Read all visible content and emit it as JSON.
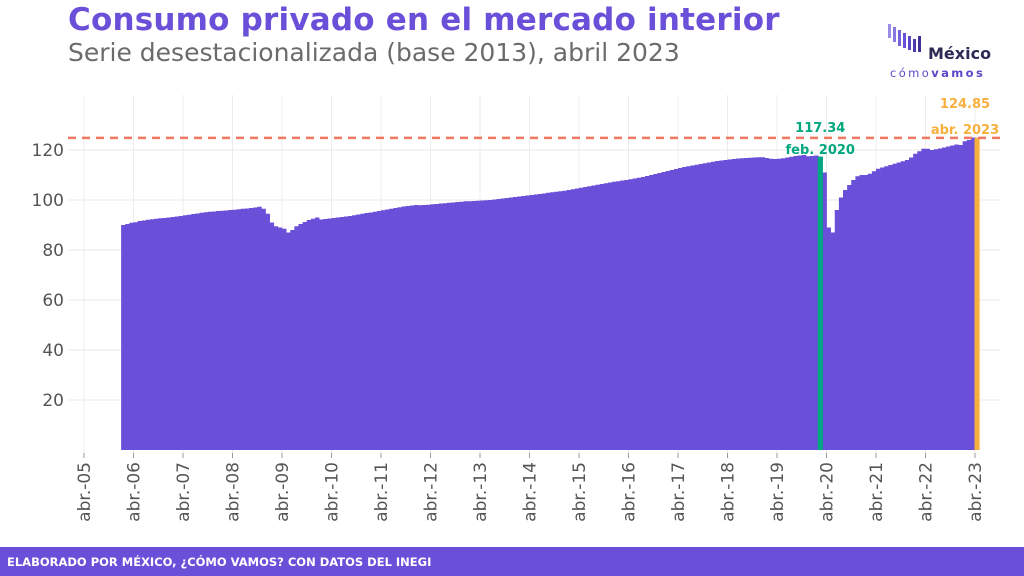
{
  "header": {
    "title": "Consumo privado en el mercado interior",
    "subtitle": "Serie desestacionalizada (base 2013), abril 2023"
  },
  "logo": {
    "word": "México",
    "sub_light": "cómo",
    "sub_bold": "vamos"
  },
  "footer": {
    "text": "ELABORADO POR MÉXICO, ¿CÓMO VAMOS? CON DATOS DEL INEGI"
  },
  "colors": {
    "bars": "#6a4fd9",
    "highlight_feb2020": "#00a77f",
    "highlight_abr2023": "#f7b03d",
    "max_line": "#f07862",
    "title": "#6a4fd9",
    "footer_bg": "#6a4fd9"
  },
  "chart_data": {
    "type": "bar",
    "title": "Consumo privado en el mercado interior",
    "subtitle": "Serie desestacionalizada (base 2013), abril 2023",
    "xlabel": "",
    "ylabel": "",
    "ylim": [
      0,
      130
    ],
    "yticks": [
      20,
      40,
      60,
      80,
      100,
      120
    ],
    "x_start": "2006-01",
    "x_end": "2023-04",
    "frequency": "monthly",
    "grid": true,
    "xtick_labels": [
      "abr.-05",
      "abr.-06",
      "abr.-07",
      "abr.-08",
      "abr.-09",
      "abr.-10",
      "abr.-11",
      "abr.-12",
      "abr.-13",
      "abr.-14",
      "abr.-15",
      "abr.-16",
      "abr.-17",
      "abr.-18",
      "abr.-19",
      "abr.-20",
      "abr.-21",
      "abr.-22",
      "abr.-23"
    ],
    "xtick_dates": [
      "2005-04",
      "2006-04",
      "2007-04",
      "2008-04",
      "2009-04",
      "2010-04",
      "2011-04",
      "2012-04",
      "2013-04",
      "2014-04",
      "2015-04",
      "2016-04",
      "2017-04",
      "2018-04",
      "2019-04",
      "2020-04",
      "2021-04",
      "2022-04",
      "2023-04"
    ],
    "values": [
      90.0,
      90.4,
      90.9,
      91.1,
      91.6,
      91.8,
      92.1,
      92.3,
      92.5,
      92.7,
      92.8,
      93.0,
      93.2,
      93.4,
      93.6,
      93.9,
      94.1,
      94.4,
      94.6,
      94.9,
      95.1,
      95.3,
      95.4,
      95.6,
      95.7,
      95.8,
      96.0,
      96.1,
      96.3,
      96.5,
      96.6,
      96.8,
      97.0,
      97.3,
      96.5,
      94.5,
      91.0,
      89.5,
      89.0,
      88.5,
      87.0,
      88.0,
      89.5,
      90.4,
      91.2,
      92.0,
      92.5,
      93.0,
      92.2,
      92.4,
      92.6,
      92.8,
      93.0,
      93.2,
      93.4,
      93.6,
      93.9,
      94.2,
      94.5,
      94.8,
      95.0,
      95.3,
      95.6,
      95.9,
      96.2,
      96.5,
      96.8,
      97.1,
      97.4,
      97.6,
      97.8,
      98.0,
      97.9,
      98.0,
      98.1,
      98.3,
      98.4,
      98.6,
      98.7,
      98.9,
      99.0,
      99.2,
      99.3,
      99.5,
      99.5,
      99.6,
      99.7,
      99.8,
      99.9,
      100.0,
      100.2,
      100.4,
      100.6,
      100.8,
      101.0,
      101.2,
      101.4,
      101.6,
      101.8,
      102.0,
      102.2,
      102.4,
      102.6,
      102.9,
      103.1,
      103.3,
      103.5,
      103.7,
      104.0,
      104.3,
      104.6,
      104.9,
      105.2,
      105.5,
      105.8,
      106.1,
      106.4,
      106.7,
      107.0,
      107.3,
      107.5,
      107.8,
      108.0,
      108.3,
      108.6,
      108.9,
      109.2,
      109.6,
      110.0,
      110.4,
      110.8,
      111.2,
      111.6,
      112.0,
      112.4,
      112.8,
      113.2,
      113.5,
      113.8,
      114.1,
      114.4,
      114.7,
      115.0,
      115.3,
      115.6,
      115.8,
      116.0,
      116.2,
      116.4,
      116.6,
      116.7,
      116.8,
      116.9,
      117.0,
      117.1,
      117.1,
      116.8,
      116.5,
      116.4,
      116.5,
      116.7,
      117.0,
      117.3,
      117.6,
      117.8,
      118.0,
      117.5,
      117.6,
      117.8,
      117.34,
      111.0,
      89.0,
      87.0,
      96.0,
      101.0,
      104.0,
      106.0,
      108.0,
      109.5,
      110.0,
      110.0,
      110.5,
      111.5,
      112.5,
      113.0,
      113.5,
      114.0,
      114.5,
      115.0,
      115.5,
      116.0,
      117.0,
      118.5,
      119.5,
      120.5,
      120.5,
      120.0,
      120.3,
      120.6,
      121.0,
      121.4,
      121.8,
      122.2,
      122.0,
      123.5,
      124.0,
      125.0,
      124.85
    ],
    "annotations": [
      {
        "label": "117.34",
        "sublabel": "feb. 2020",
        "date": "2020-02",
        "value": 117.34,
        "color": "#00a77f"
      },
      {
        "label": "124.85",
        "sublabel": "abr. 2023",
        "date": "2023-04",
        "value": 124.85,
        "color": "#f7b03d"
      }
    ],
    "reference_line": {
      "value": 124.85,
      "style": "dashed",
      "color": "#f07862"
    }
  }
}
